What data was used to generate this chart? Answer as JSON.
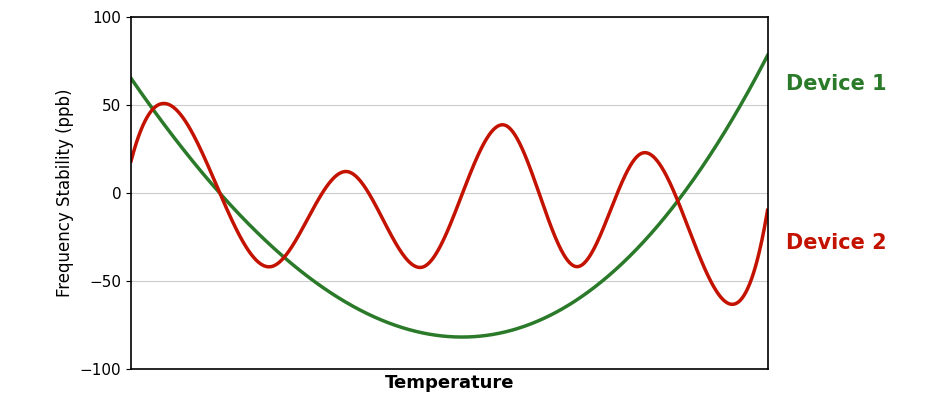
{
  "title": "",
  "xlabel": "Temperature",
  "ylabel": "Frequency Stability (ppb)",
  "ylim": [
    -100,
    100
  ],
  "xlim": [
    0,
    1
  ],
  "yticks": [
    -100,
    -50,
    0,
    50,
    100
  ],
  "background_color": "#ffffff",
  "device1_color": "#2a7a2a",
  "device2_color": "#c41200",
  "device1_label": "Device 1",
  "device2_label": "Device 2",
  "linewidth": 2.5,
  "xlabel_fontsize": 13,
  "ylabel_fontsize": 12,
  "label_fontsize": 15,
  "device1_poly": [
    150.8,
    386.8,
    -524.6,
    65.0
  ],
  "device2_A1": 30,
  "device2_f1": 3.5,
  "device2_phi1": 0.47,
  "device2_A2": 13,
  "device2_f2": 7.0,
  "device2_phi2": 0.94
}
